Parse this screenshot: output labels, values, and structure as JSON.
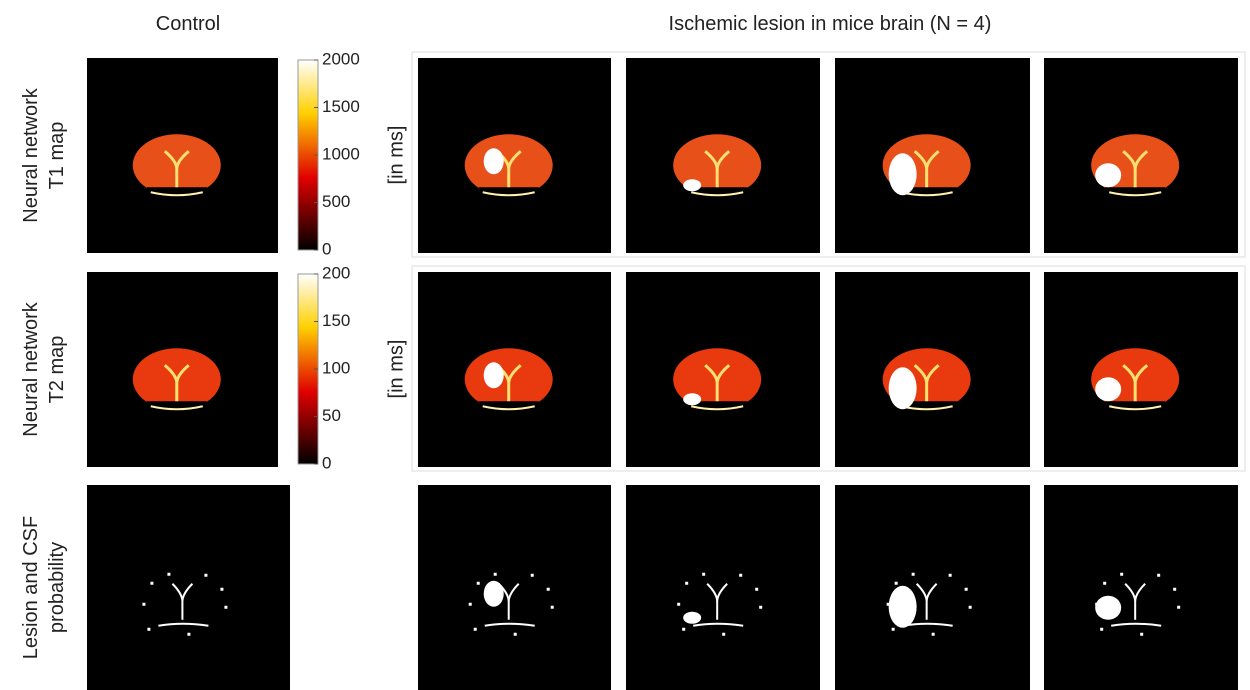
{
  "header": {
    "control": "Control",
    "lesion": "Ischemic lesion in mice brain (N = 4)"
  },
  "rows": [
    {
      "label": [
        "Neural network",
        "T1 map"
      ]
    },
    {
      "label": [
        "Neural network",
        "T2 map"
      ]
    },
    {
      "label": [
        "Lesion and CSF",
        "probability"
      ]
    }
  ],
  "colorbars": [
    {
      "ticks": [
        0,
        500,
        1000,
        1500,
        2000
      ],
      "unit": "[in ms]"
    },
    {
      "ticks": [
        0,
        50,
        100,
        150,
        200
      ],
      "unit": "[in ms]"
    }
  ]
}
